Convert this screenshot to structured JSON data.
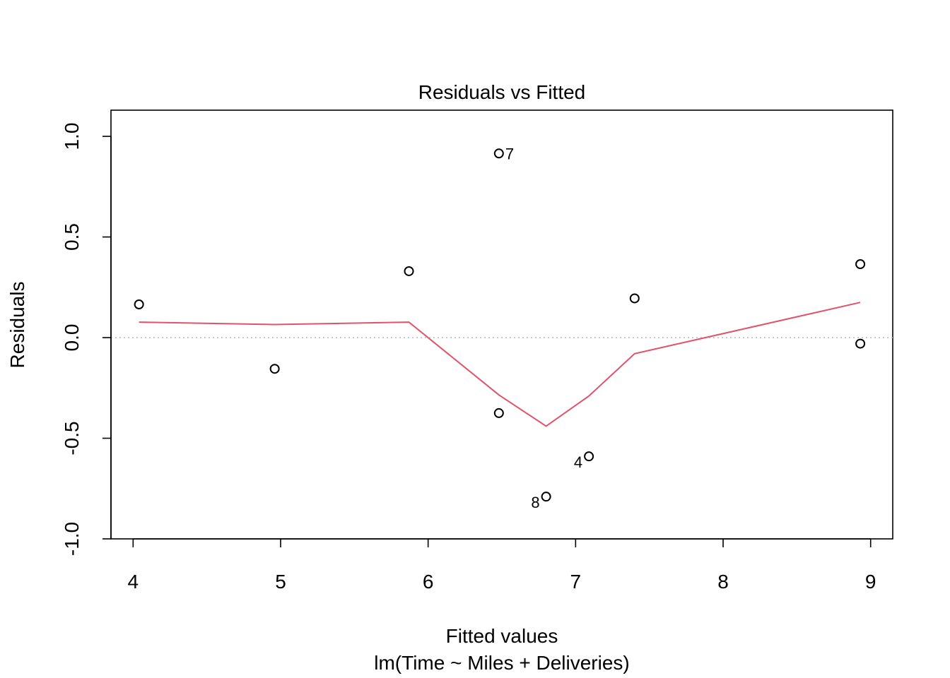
{
  "chart_data": {
    "type": "scatter",
    "title": "Residuals vs Fitted",
    "xlabel": "Fitted values",
    "subtitle": "lm(Time ~ Miles + Deliveries)",
    "ylabel": "Residuals",
    "xlim": [
      3.85,
      9.15
    ],
    "ylim": [
      -1.0,
      1.13
    ],
    "x_ticks": [
      "4",
      "5",
      "6",
      "7",
      "8",
      "9"
    ],
    "y_ticks": [
      "-1.0",
      "-0.5",
      "0.0",
      "0.5",
      "1.0"
    ],
    "x_tick_values": [
      4,
      5,
      6,
      7,
      8,
      9
    ],
    "y_tick_values": [
      -1.0,
      -0.5,
      0.0,
      0.5,
      1.0
    ],
    "points": [
      {
        "x": 4.04,
        "y": 0.165
      },
      {
        "x": 4.96,
        "y": -0.155
      },
      {
        "x": 5.87,
        "y": 0.33
      },
      {
        "x": 6.48,
        "y": 0.915,
        "label": "7"
      },
      {
        "x": 6.48,
        "y": -0.375
      },
      {
        "x": 6.8,
        "y": -0.79,
        "label": "8"
      },
      {
        "x": 7.09,
        "y": -0.59,
        "label": "4"
      },
      {
        "x": 7.4,
        "y": 0.195
      },
      {
        "x": 8.93,
        "y": 0.365
      },
      {
        "x": 8.93,
        "y": -0.03
      }
    ],
    "smooth_line": {
      "color": "#DF536B",
      "x": [
        4.04,
        4.96,
        5.87,
        6.48,
        6.8,
        7.09,
        7.4,
        8.93
      ],
      "y": [
        0.077,
        0.065,
        0.077,
        -0.285,
        -0.44,
        -0.29,
        -0.08,
        0.175
      ]
    },
    "reference_line": {
      "y": 0.0,
      "color": "#BEBEBE",
      "style": "dotted"
    },
    "grid": false
  }
}
